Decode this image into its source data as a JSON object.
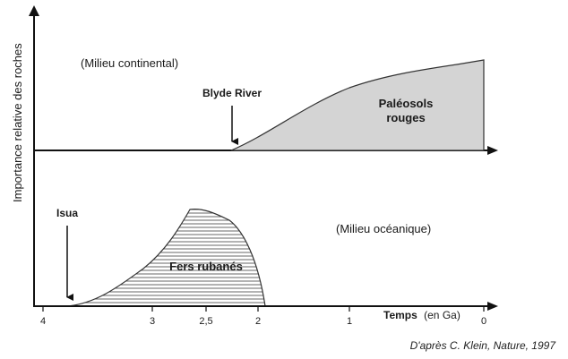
{
  "y_axis_label": "Importance relative des roches",
  "x_axis": {
    "label_main": "Temps",
    "label_unit": "(en Ga)",
    "ticks": [
      "4",
      "3",
      "2,5",
      "2",
      "1",
      "0"
    ]
  },
  "continental": {
    "environment_label": "(Milieu continental)",
    "event_label": "Blyde River",
    "area_label_line1": "Paléosols",
    "area_label_line2": "rouges",
    "area_color": "#d4d4d4"
  },
  "oceanic": {
    "environment_label": "(Milieu océanique)",
    "event_label": "Isua",
    "area_label": "Fers rubanés",
    "hatch_color": "#555555"
  },
  "source": "D'après C. Klein, Nature, 1997"
}
